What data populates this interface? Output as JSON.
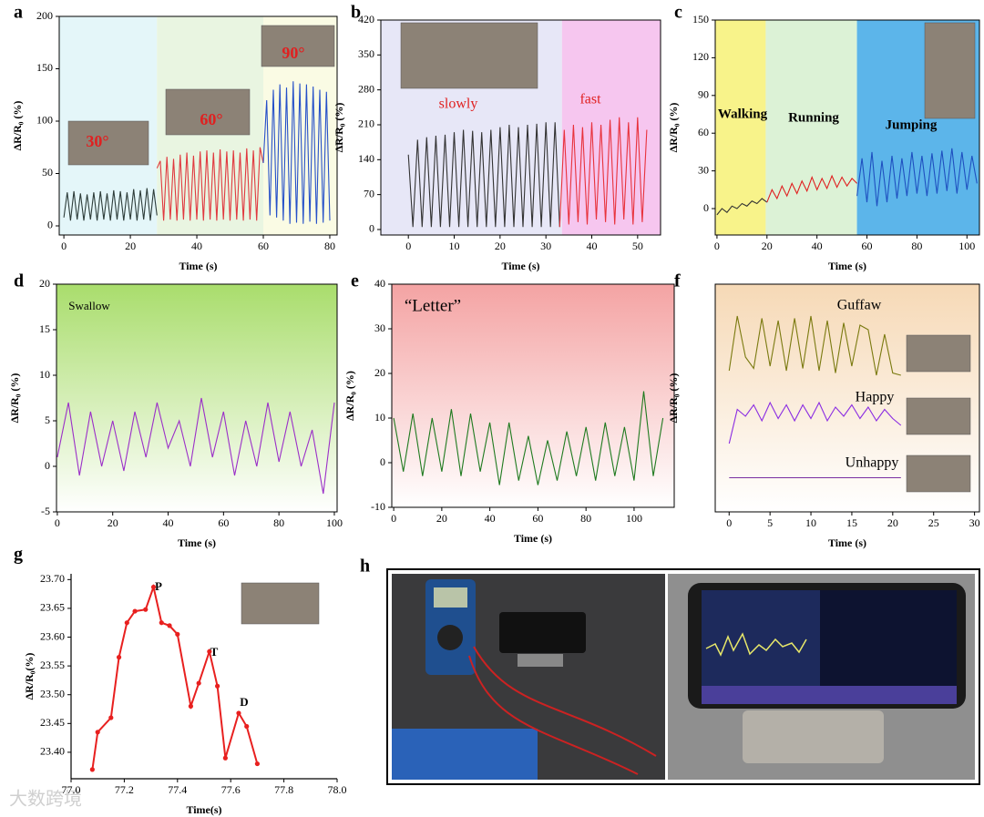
{
  "chart_data": [
    {
      "type": "line",
      "label": "a",
      "xlabel": "Time (s)",
      "ylabel": "ΔR/R₀ (%)",
      "xlim": [
        -1.4,
        82.2
      ],
      "ylim": [
        -8.7,
        200
      ],
      "xticks": [
        0,
        20,
        40,
        60,
        80
      ],
      "yticks": [
        0,
        50,
        100,
        150,
        200
      ],
      "bands": [
        {
          "x": [
            -1.4,
            28
          ],
          "color": "#e4f6f9"
        },
        {
          "x": [
            28,
            60
          ],
          "color": "#e9f5e1"
        },
        {
          "x": [
            60,
            82.2
          ],
          "color": "#fafbe4"
        }
      ],
      "annotations": [
        "30°",
        "60°",
        "90°"
      ],
      "series": [
        {
          "color": "#2e3d3a",
          "x": [
            0,
            1,
            2,
            3,
            4,
            5,
            6,
            7,
            8,
            9,
            10,
            11,
            12,
            13,
            14,
            15,
            16,
            17,
            18,
            19,
            20,
            21,
            22,
            23,
            24,
            25,
            26,
            27,
            28
          ],
          "values": [
            8,
            32,
            5,
            33,
            6,
            31,
            5,
            30,
            6,
            32,
            5,
            33,
            6,
            31,
            5,
            34,
            6,
            33,
            5,
            32,
            6,
            35,
            5,
            34,
            6,
            36,
            5,
            35,
            10
          ]
        },
        {
          "color": "#e0393f",
          "x": [
            28,
            29,
            30,
            31,
            32,
            33,
            34,
            35,
            36,
            37,
            38,
            39,
            40,
            41,
            42,
            43,
            44,
            45,
            46,
            47,
            48,
            49,
            50,
            51,
            52,
            53,
            54,
            55,
            56,
            57,
            58,
            59,
            60
          ],
          "values": [
            55,
            62,
            5,
            66,
            6,
            64,
            5,
            68,
            6,
            70,
            5,
            67,
            6,
            71,
            5,
            72,
            6,
            70,
            5,
            73,
            6,
            71,
            5,
            72,
            6,
            70,
            5,
            74,
            6,
            72,
            5,
            75,
            60
          ]
        },
        {
          "color": "#2650c8",
          "x": [
            60,
            61,
            62,
            63,
            64,
            65,
            66,
            67,
            68,
            69,
            70,
            71,
            72,
            73,
            74,
            75,
            76,
            77,
            78,
            79,
            80
          ],
          "values": [
            60,
            120,
            10,
            130,
            8,
            135,
            5,
            132,
            2,
            138,
            3,
            136,
            2,
            135,
            4,
            133,
            2,
            130,
            3,
            128,
            5
          ]
        }
      ]
    },
    {
      "type": "line",
      "label": "b",
      "xlabel": "Time (s)",
      "ylabel": "ΔR/R₀ (%)",
      "xlim": [
        -6,
        55
      ],
      "ylim": [
        -11,
        420
      ],
      "xticks": [
        0,
        10,
        20,
        30,
        40,
        50
      ],
      "yticks": [
        0,
        70,
        140,
        210,
        280,
        350,
        420
      ],
      "bands": [
        {
          "x": [
            -6,
            33.5
          ],
          "color": "#e7e7f7"
        },
        {
          "x": [
            33.5,
            55
          ],
          "color": "#f6c6ef"
        }
      ],
      "annotations": [
        "slowly",
        "fast"
      ],
      "series": [
        {
          "color": "#333333",
          "x": [
            0,
            1,
            2,
            3,
            4,
            5,
            6,
            7,
            8,
            9,
            10,
            11,
            12,
            13,
            14,
            15,
            16,
            17,
            18,
            19,
            20,
            21,
            22,
            23,
            24,
            25,
            26,
            27,
            28,
            29,
            30,
            31,
            32,
            33
          ],
          "values": [
            150,
            5,
            180,
            5,
            185,
            5,
            188,
            5,
            190,
            5,
            195,
            5,
            200,
            5,
            198,
            5,
            195,
            5,
            200,
            5,
            205,
            5,
            210,
            5,
            205,
            5,
            210,
            5,
            212,
            5,
            215,
            5,
            215,
            5
          ]
        },
        {
          "color": "#e8323c",
          "x": [
            33,
            34,
            35,
            36,
            37,
            38,
            39,
            40,
            41,
            42,
            43,
            44,
            45,
            46,
            47,
            48,
            49,
            50,
            51,
            52
          ],
          "values": [
            5,
            200,
            10,
            210,
            15,
            205,
            10,
            215,
            20,
            210,
            15,
            220,
            10,
            225,
            20,
            215,
            10,
            225,
            15,
            200
          ]
        }
      ]
    },
    {
      "type": "line",
      "label": "c",
      "xlabel": "Time (s)",
      "ylabel": "ΔR/R₀ (%)",
      "xlim": [
        -0.7,
        105
      ],
      "ylim": [
        -21,
        150
      ],
      "xticks": [
        0,
        20,
        40,
        60,
        80,
        100
      ],
      "yticks": [
        0,
        30,
        60,
        90,
        120,
        150
      ],
      "bands": [
        {
          "x": [
            -0.7,
            19.5
          ],
          "color": "#f8f38a"
        },
        {
          "x": [
            19.5,
            56
          ],
          "color": "#dcf2d6"
        },
        {
          "x": [
            56,
            105
          ],
          "color": "#5cb5ea"
        }
      ],
      "annotations": [
        "Walking",
        "Running",
        "Jumping"
      ],
      "series": [
        {
          "color": "#333333",
          "x": [
            0,
            2,
            4,
            6,
            8,
            10,
            12,
            14,
            16,
            18,
            20
          ],
          "values": [
            -5,
            0,
            -3,
            2,
            0,
            4,
            2,
            6,
            4,
            8,
            5
          ]
        },
        {
          "color": "#e02020",
          "x": [
            20,
            22,
            24,
            26,
            28,
            30,
            32,
            34,
            36,
            38,
            40,
            42,
            44,
            46,
            48,
            50,
            52,
            54,
            56
          ],
          "values": [
            5,
            15,
            8,
            18,
            10,
            20,
            12,
            22,
            14,
            25,
            15,
            24,
            16,
            26,
            17,
            25,
            18,
            24,
            20
          ]
        },
        {
          "color": "#1f50c0",
          "x": [
            56,
            58,
            60,
            62,
            64,
            66,
            68,
            70,
            72,
            74,
            76,
            78,
            80,
            82,
            84,
            86,
            88,
            90,
            92,
            94,
            96,
            98,
            100,
            102,
            104
          ],
          "values": [
            10,
            40,
            5,
            45,
            2,
            38,
            5,
            42,
            8,
            40,
            10,
            45,
            12,
            42,
            10,
            44,
            12,
            46,
            14,
            48,
            12,
            45,
            15,
            42,
            20
          ]
        }
      ]
    },
    {
      "type": "line",
      "label": "d",
      "xlabel": "Time (s)",
      "ylabel": "ΔR/R₀ (%)",
      "xlim": [
        -0.3,
        101
      ],
      "ylim": [
        -5,
        20
      ],
      "xticks": [
        0,
        20,
        40,
        60,
        80,
        100
      ],
      "yticks": [
        -5,
        0,
        5,
        10,
        15,
        20
      ],
      "background_gradient": [
        "#a9dd6c",
        "#ffffff"
      ],
      "annotations": [
        "Swallow"
      ],
      "series": [
        {
          "color": "#9b2fc8",
          "x": [
            0,
            4,
            8,
            12,
            16,
            20,
            24,
            28,
            32,
            36,
            40,
            44,
            48,
            52,
            56,
            60,
            64,
            68,
            72,
            76,
            80,
            84,
            88,
            92,
            96,
            100
          ],
          "values": [
            1,
            7,
            -1,
            6,
            0,
            5,
            -0.5,
            6,
            1,
            7,
            2,
            5,
            0,
            7.5,
            1,
            6,
            -1,
            5,
            0,
            7,
            0.5,
            6,
            0,
            4,
            -3,
            7
          ]
        }
      ]
    },
    {
      "type": "line",
      "label": "e",
      "xlabel": "Time (s)",
      "ylabel": "ΔR/R₀ (%)",
      "xlim": [
        -0.8,
        116.7
      ],
      "ylim": [
        -10,
        40
      ],
      "xticks": [
        0,
        20,
        40,
        60,
        80,
        100
      ],
      "yticks": [
        -10,
        0,
        10,
        20,
        30,
        40
      ],
      "background_gradient": [
        "#f4a3a3",
        "#ffffff"
      ],
      "annotations": [
        "“Letter”"
      ],
      "series": [
        {
          "color": "#1f7a1f",
          "x": [
            0,
            4,
            8,
            12,
            16,
            20,
            24,
            28,
            32,
            36,
            40,
            44,
            48,
            52,
            56,
            60,
            64,
            68,
            72,
            76,
            80,
            84,
            88,
            92,
            96,
            100,
            104,
            108,
            112
          ],
          "values": [
            10,
            -2,
            11,
            -3,
            10,
            -2,
            12,
            -3,
            11,
            -2,
            9,
            -5,
            9,
            -4,
            6,
            -5,
            5,
            -4,
            7,
            -3,
            8,
            -4,
            9,
            -3,
            8,
            -4,
            16,
            -3,
            10
          ]
        }
      ]
    },
    {
      "type": "line",
      "label": "f",
      "xlabel": "Time (s)",
      "ylabel": "ΔR/R₀ (%)",
      "xlim": [
        -1.7,
        30.6
      ],
      "ylim": [
        0,
        100
      ],
      "xticks": [
        0,
        5,
        10,
        15,
        20,
        25,
        30
      ],
      "background_gradient": [
        "#f6d9b6",
        "#ffffff"
      ],
      "annotations": [
        "Guffaw",
        "Happy",
        "Unhappy"
      ],
      "series": [
        {
          "color": "#7a7a10",
          "x": [
            0,
            1,
            2,
            3,
            4,
            5,
            6,
            7,
            8,
            9,
            10,
            11,
            12,
            13,
            14,
            15,
            16,
            17,
            18,
            19,
            20,
            21
          ],
          "values": [
            62,
            86,
            68,
            63,
            85,
            64,
            84,
            62,
            85,
            63,
            86,
            62,
            84,
            61,
            83,
            64,
            82,
            80,
            60,
            78,
            61,
            60
          ]
        },
        {
          "color": "#8a2be2",
          "x": [
            0,
            1,
            2,
            3,
            4,
            5,
            6,
            7,
            8,
            9,
            10,
            11,
            12,
            13,
            14,
            15,
            16,
            17,
            18,
            19,
            20,
            21
          ],
          "values": [
            30,
            45,
            42,
            47,
            40,
            48,
            41,
            47,
            40,
            47,
            41,
            48,
            40,
            46,
            42,
            47,
            41,
            46,
            40,
            45,
            41,
            38
          ]
        },
        {
          "color": "#7a2fa0",
          "x": [
            0,
            21
          ],
          "values": [
            15,
            15
          ]
        }
      ]
    },
    {
      "type": "line",
      "label": "g",
      "xlabel": "Time(s)",
      "ylabel": "ΔR/R₀(%)",
      "markers": true,
      "xlim": [
        77,
        78
      ],
      "ylim": [
        23.354,
        23.71
      ],
      "xticks": [
        {
          "value": 77.0,
          "label": "77.0"
        },
        77.2,
        77.4,
        77.6,
        77.8,
        {
          "value": 78.0,
          "label": "78.0"
        }
      ],
      "yticks": [
        {
          "value": 23.4,
          "label": "23.40"
        },
        23.45,
        {
          "value": 23.5,
          "label": "23.50"
        },
        23.55,
        {
          "value": 23.6,
          "label": "23.60"
        },
        23.65,
        {
          "value": 23.7,
          "label": "23.70"
        }
      ],
      "annotations": [
        "P",
        "T",
        "D"
      ],
      "series": [
        {
          "color": "#e8201f",
          "x": [
            77.08,
            77.1,
            77.15,
            77.18,
            77.21,
            77.24,
            77.28,
            77.31,
            77.34,
            77.37,
            77.4,
            77.45,
            77.48,
            77.52,
            77.55,
            77.58,
            77.63,
            77.66,
            77.7
          ],
          "values": [
            23.37,
            23.435,
            23.46,
            23.565,
            23.625,
            23.645,
            23.648,
            23.687,
            23.625,
            23.62,
            23.605,
            23.48,
            23.52,
            23.575,
            23.515,
            23.39,
            23.468,
            23.445,
            23.38
          ]
        }
      ]
    }
  ],
  "photo_panel": {
    "label": "h"
  },
  "watermark": "大数跨境"
}
